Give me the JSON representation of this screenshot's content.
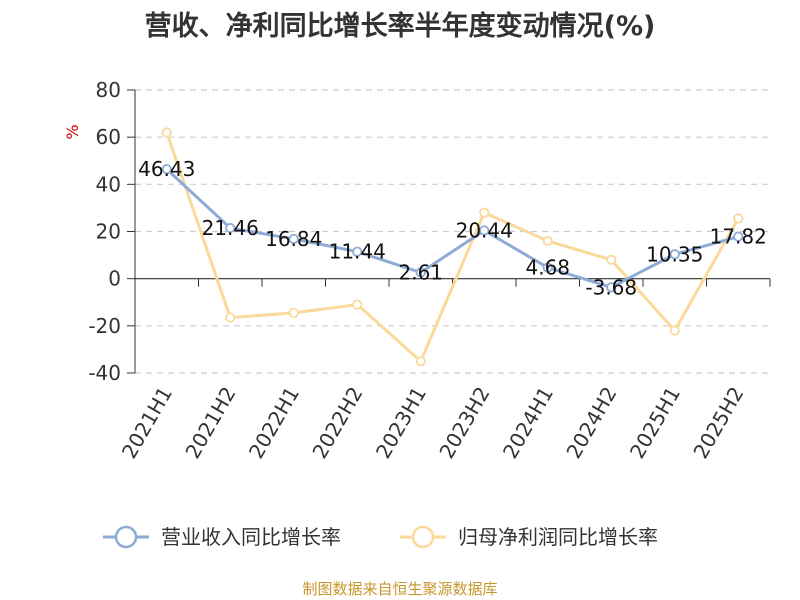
{
  "chart_data": {
    "type": "line",
    "title": "营收、净利同比增长率半年度变动情况(%)",
    "ylabel": "%",
    "ylim": [
      -40,
      80
    ],
    "yticks": [
      80,
      60,
      40,
      20,
      0,
      -20,
      -40
    ],
    "categories": [
      "2021H1",
      "2021H2",
      "2022H1",
      "2022H2",
      "2023H1",
      "2023H2",
      "2024H1",
      "2024H2",
      "2025H1",
      "2025H2"
    ],
    "series": [
      {
        "name": "营业收入同比增长率",
        "color": "#8eaad6",
        "values": [
          46.43,
          21.46,
          16.84,
          11.44,
          2.61,
          20.44,
          4.68,
          -3.68,
          10.35,
          17.82
        ],
        "labels": [
          "46.43",
          "21.46",
          "16.84",
          "11.44",
          "2.61",
          "20.44",
          "4.68",
          "-3.68",
          "10.35",
          "17.82"
        ]
      },
      {
        "name": "归母净利润同比增长率",
        "color": "#fbd99a",
        "values": [
          62,
          -16.5,
          -14.5,
          -11,
          -35,
          28,
          16,
          8,
          -22,
          25.5
        ]
      }
    ],
    "grid": true,
    "legend": "bottom"
  },
  "footer": {
    "source": "制图数据来自恒生聚源数据库"
  }
}
